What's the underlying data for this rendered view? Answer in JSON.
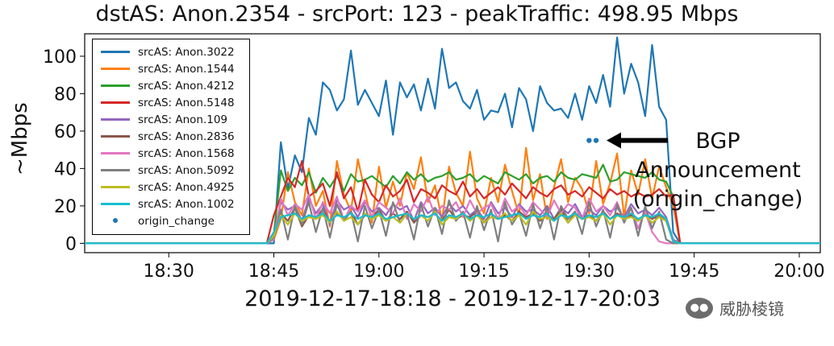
{
  "chart_data": {
    "type": "line",
    "title": "dstAS: Anon.2354 - srcPort: 123 - peakTraffic: 498.95 Mbps",
    "xlabel": "2019-12-17-18:18 - 2019-12-17-20:03",
    "ylabel": "~Mbps",
    "xlim": [
      "18:18",
      "20:03"
    ],
    "ylim": [
      -5,
      112
    ],
    "yticks": [
      0,
      20,
      40,
      60,
      80,
      100
    ],
    "xticks": [
      "18:30",
      "18:45",
      "19:00",
      "19:15",
      "19:30",
      "19:45",
      "20:00"
    ],
    "grid": false,
    "legend_position": "upper-left",
    "x_start": "18:44",
    "x_step_minutes": 1,
    "series": [
      {
        "name": "srcAS: Anon.3022",
        "color": "#1f77b4",
        "values": [
          0,
          0,
          54,
          29,
          47,
          38,
          67,
          58,
          86,
          82,
          71,
          77,
          103,
          74,
          82,
          75,
          68,
          87,
          58,
          86,
          78,
          85,
          71,
          88,
          72,
          104,
          83,
          86,
          76,
          72,
          82,
          66,
          71,
          70,
          80,
          62,
          83,
          77,
          60,
          84,
          75,
          71,
          72,
          67,
          80,
          66,
          84,
          75,
          90,
          73,
          110,
          80,
          96,
          86,
          68,
          106,
          73,
          66,
          6
        ],
        "start": "18:44"
      },
      {
        "name": "srcAS: Anon.1544",
        "color": "#ff7f0e",
        "values": [
          0,
          2,
          13,
          38,
          22,
          15,
          40,
          20,
          28,
          9,
          44,
          26,
          17,
          45,
          28,
          11,
          41,
          19,
          33,
          20,
          38,
          29,
          46,
          22,
          31,
          12,
          41,
          27,
          20,
          49,
          24,
          16,
          35,
          22,
          42,
          28,
          15,
          51,
          23,
          37,
          13,
          30,
          45,
          22,
          35,
          29,
          16,
          44,
          21,
          32,
          48,
          14,
          39,
          26,
          45,
          24,
          41,
          30,
          20
        ]
      },
      {
        "name": "srcAS: Anon.4212",
        "color": "#2ca02c",
        "values": [
          0,
          5,
          39,
          28,
          35,
          31,
          38,
          27,
          35,
          30,
          36,
          28,
          37,
          33,
          34,
          36,
          33,
          30,
          36,
          32,
          38,
          34,
          37,
          33,
          35,
          36,
          38,
          34,
          35,
          37,
          33,
          36,
          34,
          32,
          38,
          36,
          34,
          37,
          32,
          35,
          36,
          33,
          38,
          35,
          34,
          37,
          36,
          35,
          42,
          33,
          34,
          38,
          37,
          36,
          35,
          38,
          34,
          33,
          25
        ]
      },
      {
        "name": "srcAS: Anon.5148",
        "color": "#d62728",
        "values": [
          0,
          15,
          25,
          35,
          30,
          44,
          25,
          28,
          32,
          20,
          38,
          24,
          30,
          17,
          34,
          26,
          22,
          31,
          25,
          28,
          34,
          22,
          29,
          27,
          24,
          31,
          28,
          26,
          33,
          25,
          29,
          24,
          27,
          30,
          26,
          32,
          28,
          24,
          30,
          27,
          25,
          29,
          31,
          26,
          28,
          25,
          30,
          27,
          24,
          29,
          26,
          28,
          25,
          27,
          25,
          26,
          29,
          25,
          26
        ]
      },
      {
        "name": "srcAS: Anon.109",
        "color": "#9467bd",
        "values": [
          0,
          5,
          22,
          18,
          20,
          12,
          24,
          16,
          21,
          10,
          23,
          18,
          20,
          14,
          22,
          17,
          19,
          15,
          21,
          18,
          20,
          12,
          22,
          16,
          19,
          14,
          21,
          17,
          20,
          15,
          18,
          13,
          22,
          16,
          19,
          14,
          21,
          17,
          18,
          15,
          20,
          13,
          19,
          16,
          21,
          14,
          18,
          15,
          20,
          17,
          19,
          14,
          21,
          16,
          18,
          15,
          19,
          14,
          2
        ]
      },
      {
        "name": "srcAS: Anon.2836",
        "color": "#8c564b",
        "values": [
          0,
          3,
          16,
          12,
          19,
          9,
          15,
          14,
          18,
          11,
          16,
          13,
          17,
          10,
          15,
          14,
          18,
          12,
          16,
          13,
          17,
          11,
          15,
          14,
          16,
          12,
          18,
          13,
          15,
          14,
          17,
          11,
          16,
          13,
          15,
          12,
          17,
          14,
          16,
          12,
          15,
          13,
          18,
          11,
          16,
          14,
          15,
          12,
          17,
          13,
          16,
          14,
          15,
          12,
          16,
          13,
          15,
          12,
          1
        ]
      },
      {
        "name": "srcAS: Anon.1568",
        "color": "#e377c2",
        "values": [
          0,
          2,
          24,
          15,
          21,
          18,
          26,
          13,
          22,
          16,
          25,
          12,
          20,
          17,
          23,
          14,
          22,
          19,
          16,
          24,
          13,
          21,
          17,
          25,
          15,
          20,
          18,
          22,
          14,
          23,
          16,
          19,
          21,
          13,
          24,
          17,
          20,
          15,
          22,
          18,
          14,
          23,
          16,
          21,
          19,
          13,
          24,
          17,
          20,
          15,
          22,
          12,
          19,
          8,
          17,
          6,
          1,
          0,
          0
        ]
      },
      {
        "name": "srcAS: Anon.5092",
        "color": "#7f7f7f",
        "values": [
          0,
          3,
          18,
          2,
          20,
          10,
          22,
          6,
          19,
          3,
          21,
          12,
          17,
          1,
          20,
          8,
          18,
          4,
          22,
          11,
          16,
          2,
          21,
          9,
          19,
          5,
          23,
          12,
          17,
          3,
          20,
          7,
          18,
          1,
          22,
          10,
          16,
          4,
          21,
          8,
          19,
          2,
          20,
          13,
          17,
          5,
          22,
          9,
          18,
          3,
          21,
          11,
          19,
          4,
          20,
          8,
          17,
          2,
          0
        ]
      },
      {
        "name": "srcAS: Anon.4925",
        "color": "#bcbd22",
        "values": [
          0,
          4,
          15,
          10,
          16,
          12,
          14,
          13,
          15,
          11,
          17,
          12,
          14,
          10,
          16,
          13,
          15,
          12,
          14,
          11,
          16,
          13,
          15,
          12,
          17,
          10,
          14,
          13,
          16,
          12,
          15,
          11,
          14,
          13,
          16,
          12,
          15,
          10,
          17,
          13,
          14,
          12,
          16,
          11,
          15,
          13,
          14,
          12,
          16,
          10,
          15,
          13,
          14,
          12,
          15,
          11,
          14,
          12,
          1
        ]
      },
      {
        "name": "srcAS: Anon.1002",
        "color": "#17becf",
        "values": [
          0,
          6,
          14,
          15,
          16,
          13,
          15,
          14,
          16,
          12,
          15,
          14,
          16,
          13,
          15,
          14,
          16,
          13,
          14,
          15,
          16,
          13,
          15,
          14,
          16,
          12,
          15,
          14,
          16,
          13,
          15,
          14,
          16,
          13,
          14,
          15,
          16,
          13,
          15,
          14,
          16,
          12,
          15,
          14,
          16,
          13,
          15,
          14,
          16,
          13,
          15,
          14,
          16,
          13,
          15,
          14,
          16,
          13,
          1
        ]
      }
    ],
    "markers": {
      "name": "origin_change",
      "color": "#1f77b4",
      "points": [
        {
          "x": "19:30",
          "y": 55
        },
        {
          "x": "19:31",
          "y": 55
        }
      ]
    }
  },
  "annotation": {
    "line1": "BGP",
    "line2": "Announcement",
    "line3": "(origin_change)"
  },
  "watermark": {
    "text": "威胁棱镜",
    "icon": "wechat-icon"
  }
}
